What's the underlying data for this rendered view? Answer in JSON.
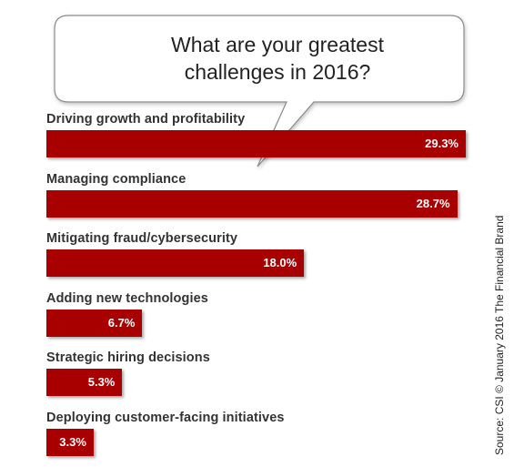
{
  "chart_data": {
    "type": "bar",
    "orientation": "horizontal",
    "title": "What are your greatest challenges in 2016?",
    "categories": [
      "Driving growth and profitability",
      "Managing compliance",
      "Mitigating fraud/cybersecurity",
      "Adding new technologies",
      "Strategic hiring decisions",
      "Deploying customer-facing initiatives"
    ],
    "values": [
      29.3,
      28.7,
      18.0,
      6.7,
      5.3,
      3.3
    ],
    "value_labels": [
      "29.3%",
      "28.7%",
      "18.0%",
      "6.7%",
      "5.3%",
      "3.3%"
    ],
    "unit": "%",
    "bar_color": "#a80000",
    "xlim": [
      0,
      29.3
    ],
    "grid": false,
    "legend": "none"
  },
  "source_note": "Source: CSI © January 2016 The Financial Brand"
}
